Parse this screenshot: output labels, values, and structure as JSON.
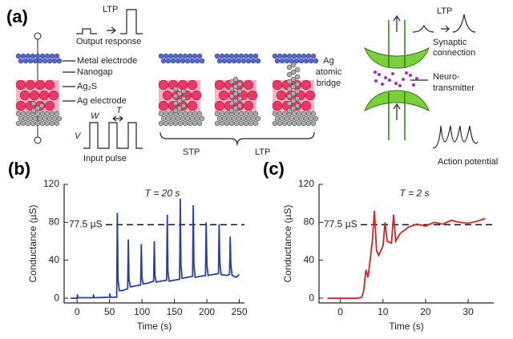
{
  "diagram": {
    "panel_label": "(a)",
    "output_ltp": "LTP",
    "output_response": "Output response",
    "metal_electrode": "Metal electrode",
    "nanogap": "Nanogap",
    "ag2s": "Ag₂S",
    "ag_electrode": "Ag electrode",
    "pulse_w": "W",
    "pulse_t": "T",
    "pulse_v": "V",
    "input_pulse": "Input pulse",
    "stp": "STP",
    "ltp": "LTP",
    "bridge": [
      "Ag",
      "atomic",
      "bridge"
    ],
    "synaptic_ltp": "LTP",
    "synaptic_connection": [
      "Synaptic",
      "connection"
    ],
    "neurotransmitter": [
      "Neuro-",
      "transmitter"
    ],
    "action_potential": "Action potential"
  },
  "chart_data": [
    {
      "type": "line",
      "panel_label": "(b)",
      "annotation": "T = 20 s",
      "reference": {
        "value": 77.5,
        "label": "77.5 µS"
      },
      "xlabel": "Time (s)",
      "ylabel": "Conductance (µS)",
      "xlim": [
        -20,
        258
      ],
      "ylim": [
        -5,
        120
      ],
      "xticks": [
        0,
        50,
        100,
        150,
        200,
        250
      ],
      "yticks": [
        0,
        40,
        80,
        120
      ],
      "x": [
        -10,
        0,
        0.5,
        1,
        25,
        25.5,
        26,
        50,
        50.5,
        51,
        61,
        62,
        63,
        65,
        70,
        78,
        79,
        80,
        82,
        90,
        98,
        99,
        100,
        102,
        110,
        118,
        119,
        120,
        122,
        130,
        138,
        139,
        140,
        142,
        150,
        158,
        159,
        160,
        162,
        170,
        178,
        179,
        180,
        182,
        190,
        198,
        199,
        200,
        202,
        210,
        218,
        219,
        220,
        222,
        230,
        235,
        236,
        237,
        239,
        245,
        250
      ],
      "series": [
        {
          "color": "#2b3fa0",
          "values": [
            0,
            0,
            4,
            0.5,
            0.5,
            4,
            0.5,
            1,
            5,
            1,
            1,
            90,
            20,
            8,
            8,
            10,
            62,
            20,
            12,
            13,
            14,
            57,
            22,
            15,
            16,
            18,
            60,
            24,
            17,
            18,
            19,
            88,
            28,
            18,
            19,
            20,
            105,
            35,
            21,
            22,
            23,
            98,
            35,
            22,
            23,
            24,
            80,
            35,
            24,
            25,
            26,
            78,
            38,
            25,
            24,
            25,
            65,
            35,
            24,
            22,
            25
          ]
        }
      ]
    },
    {
      "type": "line",
      "panel_label": "(c)",
      "annotation": "T = 2 s",
      "reference": {
        "value": 77.5,
        "label": "77.5 µS"
      },
      "xlabel": "Time (s)",
      "ylabel": "Conductance (µS)",
      "xlim": [
        -5,
        36
      ],
      "ylim": [
        -5,
        120
      ],
      "xticks": [
        0,
        10,
        20,
        30
      ],
      "yticks": [
        0,
        40,
        80,
        120
      ],
      "x": [
        -3,
        4,
        5,
        5.5,
        6,
        6.5,
        7,
        7.5,
        8,
        8.5,
        9,
        10,
        10.5,
        11,
        12,
        12.5,
        13,
        14,
        16,
        18,
        20,
        22,
        24,
        26,
        28,
        30,
        32,
        34
      ],
      "series": [
        {
          "color": "#e02020",
          "values": [
            0,
            0,
            1,
            8,
            30,
            22,
            40,
            60,
            92,
            50,
            45,
            55,
            80,
            60,
            58,
            88,
            60,
            68,
            75,
            78,
            76,
            80,
            78,
            82,
            80,
            79,
            81,
            84
          ]
        }
      ]
    }
  ]
}
